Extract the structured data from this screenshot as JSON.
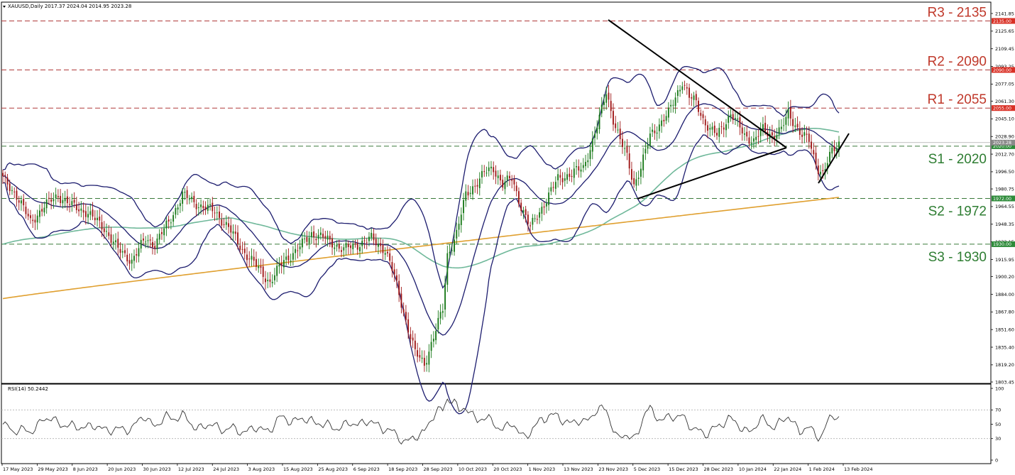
{
  "chart_data": [
    {
      "type": "candlestick",
      "symbol_header": "XAUUSD,Daily  2017.37 2024.04 2014.95 2023.28",
      "ylim": [
        1803.45,
        2145
      ],
      "y_ticks": [
        "2141.85",
        "2125.65",
        "2109.45",
        "2093.25",
        "2077.05",
        "2061.30",
        "2045.10",
        "2028.90",
        "2012.70",
        "1996.50",
        "1980.75",
        "1964.55",
        "1948.35",
        "1932.15",
        "1915.95",
        "1900.20",
        "1884.00",
        "1867.80",
        "1851.60",
        "1835.40",
        "1819.20",
        "1803.45"
      ],
      "x_tick_labels": [
        "17 May 2023",
        "29 May 2023",
        "8 Jun 2023",
        "20 Jun 2023",
        "30 Jun 2023",
        "12 Jul 2023",
        "24 Jul 2023",
        "3 Aug 2023",
        "15 Aug 2023",
        "25 Aug 2023",
        "6 Sep 2023",
        "18 Sep 2023",
        "28 Sep 2023",
        "10 Oct 2023",
        "20 Oct 2023",
        "1 Nov 2023",
        "13 Nov 2023",
        "23 Nov 2023",
        "5 Dec 2023",
        "15 Dec 2023",
        "28 Dec 2023",
        "10 Jan 2024",
        "22 Jan 2024",
        "1 Feb 2024",
        "13 Feb 2024"
      ],
      "levels": [
        {
          "label": "R3 - 2135",
          "value": 2135,
          "tag": "2135.00",
          "color": "#c0392b",
          "line_color": "#b03a3a"
        },
        {
          "label": "R2 - 2090",
          "value": 2090,
          "tag": "2090.00",
          "color": "#c0392b",
          "line_color": "#b03a3a"
        },
        {
          "label": "R1 - 2055",
          "value": 2055,
          "tag": "2055.00",
          "color": "#c0392b",
          "line_color": "#b03a3a"
        },
        {
          "label": "S1 - 2020",
          "value": 2020,
          "tag": "2020.00",
          "color": "#2e7d32",
          "line_color": "#3a7a3a"
        },
        {
          "label": "S2 - 1972",
          "value": 1972,
          "tag": "1972.00",
          "color": "#2e7d32",
          "line_color": "#3a7a3a"
        },
        {
          "label": "S3 - 1930",
          "value": 1930,
          "tag": "1930.00",
          "color": "#2e7d32",
          "line_color": "#3a7a3a"
        }
      ],
      "current_price_tag": "2023.28",
      "colors": {
        "bull": "#1a7a1a",
        "bear": "#a01818",
        "band": "#1c1c6e",
        "ma_mid": "#6fb89a",
        "ma_long": "#e0a030"
      }
    },
    {
      "type": "line",
      "title": "RSI(14) 50.2442",
      "ylim": [
        0,
        100
      ],
      "y_ticks": [
        "100",
        "70",
        "50",
        "30",
        "0"
      ],
      "levels": [
        70,
        30
      ]
    }
  ]
}
